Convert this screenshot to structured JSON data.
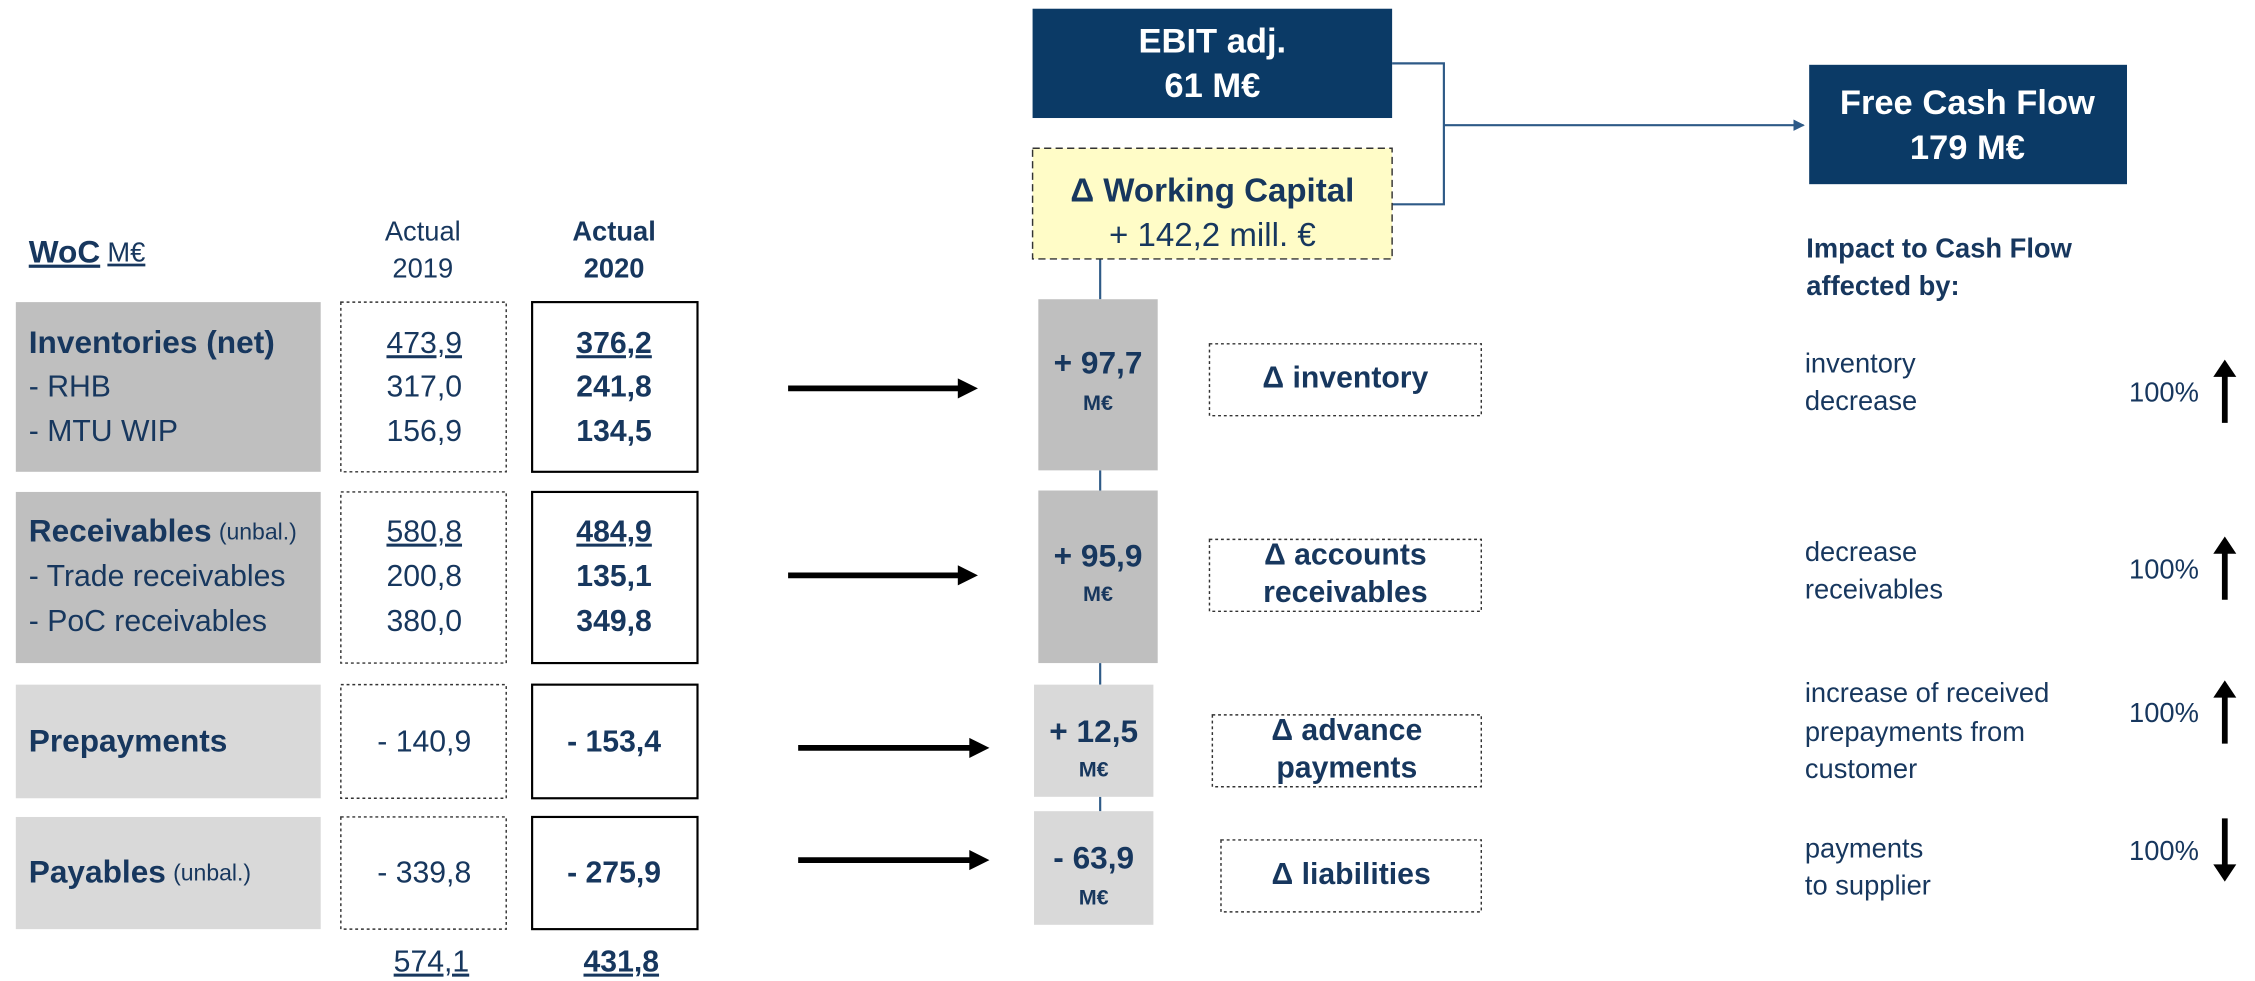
{
  "header": {
    "woc": "WoC",
    "woc_unit": "M€",
    "col2019": [
      "Actual",
      "2019"
    ],
    "col2020": [
      "Actual",
      "2020"
    ]
  },
  "rows": [
    {
      "label": "Inventories (net)",
      "sub": [
        "- RHB",
        "- MTU WIP"
      ],
      "v2019": [
        "473,9",
        "317,0",
        "156,9"
      ],
      "v2020": [
        "376,2",
        "241,8",
        "134,5"
      ],
      "delta": "+ 97,7",
      "delta_unit": "M€",
      "driver": [
        "Δ inventory"
      ],
      "impact": [
        "inventory",
        "decrease"
      ],
      "pct": "100%",
      "direction": "up"
    },
    {
      "label": "Receivables",
      "qualifier": "(unbal.)",
      "sub": [
        "- Trade receivables",
        "- PoC receivables"
      ],
      "v2019": [
        "580,8",
        "200,8",
        "380,0"
      ],
      "v2020": [
        "484,9",
        "135,1",
        "349,8"
      ],
      "delta": "+ 95,9",
      "delta_unit": "M€",
      "driver": [
        "Δ accounts",
        "receivables"
      ],
      "impact": [
        "decrease",
        "receivables"
      ],
      "pct": "100%",
      "direction": "up"
    },
    {
      "label": "Prepayments",
      "v2019": [
        "- 140,9"
      ],
      "v2020": [
        "- 153,4"
      ],
      "delta": "+ 12,5",
      "delta_unit": "M€",
      "driver": [
        "Δ advance",
        "payments"
      ],
      "impact": [
        "increase of received",
        "prepayments from",
        "customer"
      ],
      "pct": "100%",
      "direction": "up"
    },
    {
      "label": "Payables",
      "qualifier": "(unbal.)",
      "v2019": [
        "- 339,8"
      ],
      "v2020": [
        "- 275,9"
      ],
      "delta": "- 63,9",
      "delta_unit": "M€",
      "driver": [
        "Δ liabilities"
      ],
      "impact": [
        "payments",
        "to supplier"
      ],
      "pct": "100%",
      "direction": "down"
    }
  ],
  "totals": [
    "574,1",
    "431,8"
  ],
  "ebit": [
    "EBIT adj.",
    "61 M€"
  ],
  "working_capital": [
    "Δ Working Capital",
    "+ 142,2 mill. €"
  ],
  "free_cash_flow": [
    "Free Cash Flow",
    "179 M€"
  ],
  "impact_title": [
    "Impact to Cash Flow",
    "affected by:"
  ]
}
